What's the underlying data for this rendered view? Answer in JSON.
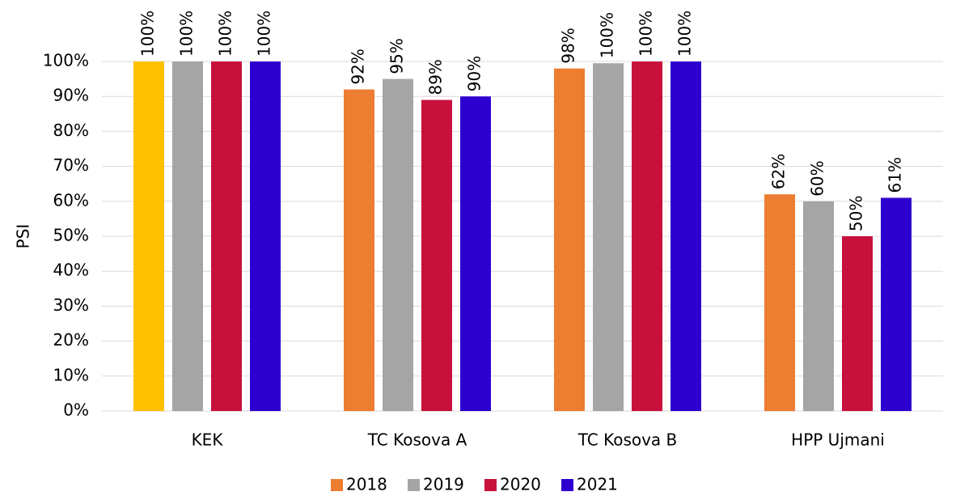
{
  "chart_data": {
    "type": "bar",
    "y_label": "PSI",
    "categories": [
      "KEK",
      "TC Kosova A",
      "TC Kosova B",
      "HPP Ujmani"
    ],
    "series": [
      {
        "name": "2018",
        "color": "#ed7d31",
        "colors": [
          "#ffc000",
          "#ed7d31",
          "#ed7d31",
          "#ed7d31"
        ],
        "values": [
          100,
          92,
          98,
          62
        ],
        "value_labels": [
          "100%",
          "92%",
          "98%",
          "62%"
        ]
      },
      {
        "name": "2019",
        "color": "#a5a5a5",
        "values": [
          100,
          95,
          99.5,
          60
        ],
        "value_labels": [
          "100%",
          "95%",
          "100%",
          "60%"
        ]
      },
      {
        "name": "2020",
        "color": "#c8103c",
        "values": [
          100,
          89,
          100,
          50
        ],
        "value_labels": [
          "100%",
          "89%",
          "100%",
          "50%"
        ]
      },
      {
        "name": "2021",
        "color": "#2e00d0",
        "values": [
          100,
          90,
          100,
          61
        ],
        "value_labels": [
          "100%",
          "90%",
          "100%",
          "61%"
        ]
      }
    ],
    "ylim": [
      0,
      100
    ],
    "yticks": [
      {
        "value": 0,
        "label": "0%"
      },
      {
        "value": 10,
        "label": "10%"
      },
      {
        "value": 20,
        "label": "20%"
      },
      {
        "value": 30,
        "label": "30%"
      },
      {
        "value": 40,
        "label": "40%"
      },
      {
        "value": 50,
        "label": "50%"
      },
      {
        "value": 60,
        "label": "60%"
      },
      {
        "value": 70,
        "label": "70%"
      },
      {
        "value": 80,
        "label": "80%"
      },
      {
        "value": 90,
        "label": "90%"
      },
      {
        "value": 100,
        "label": "100%"
      }
    ],
    "grid": true,
    "legend": "bottom"
  }
}
